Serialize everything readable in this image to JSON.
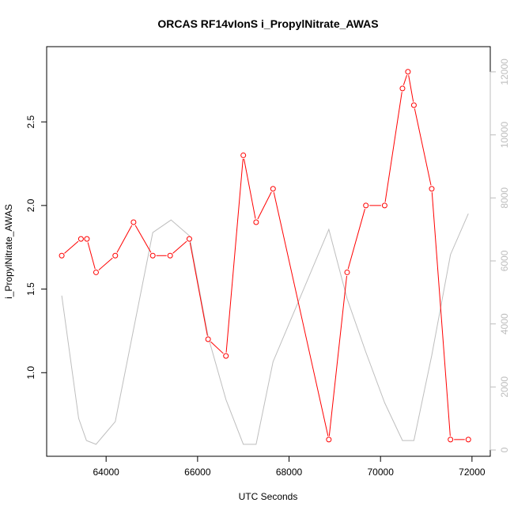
{
  "chart_data": {
    "type": "line",
    "title": "ORCAS RF14vIonS i_PropylNitrate_AWAS",
    "xlabel": "UTC Seconds",
    "ylabel": "i_PropylNitrate_AWAS",
    "xlim": [
      62700,
      72400
    ],
    "ylim": [
      0.5,
      2.95
    ],
    "y2lim": [
      -200,
      12800
    ],
    "x_ticks": [
      64000,
      66000,
      68000,
      70000,
      72000
    ],
    "y_ticks": [
      1.0,
      1.5,
      2.0,
      2.5
    ],
    "y2_ticks": [
      0,
      2000,
      4000,
      6000,
      8000,
      10000,
      12000
    ],
    "grid": false,
    "series": [
      {
        "axis": "left",
        "color": "#ff0000",
        "marker": "open-circle",
        "points": [
          [
            63030,
            1.7
          ],
          [
            63450,
            1.8
          ],
          [
            63580,
            1.8
          ],
          [
            63780,
            1.6
          ],
          [
            64200,
            1.7
          ],
          [
            64600,
            1.9
          ],
          [
            65020,
            1.7
          ],
          [
            65400,
            1.7
          ],
          [
            65820,
            1.8
          ],
          [
            66230,
            1.2
          ],
          [
            66620,
            1.1
          ],
          [
            67000,
            2.3
          ],
          [
            67280,
            1.9
          ],
          [
            67650,
            2.1
          ],
          [
            68870,
            0.6
          ],
          [
            69270,
            1.6
          ],
          [
            69680,
            2.0
          ],
          [
            70090,
            2.0
          ],
          [
            70480,
            2.7
          ],
          [
            70600,
            2.8
          ],
          [
            70730,
            2.6
          ],
          [
            71120,
            2.1
          ],
          [
            71530,
            0.6
          ],
          [
            71920,
            0.6
          ]
        ]
      },
      {
        "axis": "right",
        "color": "#bebebe",
        "marker": "none",
        "points": [
          [
            63030,
            4900
          ],
          [
            63400,
            1000
          ],
          [
            63570,
            300
          ],
          [
            63780,
            180
          ],
          [
            64200,
            900
          ],
          [
            65020,
            6900
          ],
          [
            65420,
            7300
          ],
          [
            65820,
            6800
          ],
          [
            66230,
            3600
          ],
          [
            66620,
            1600
          ],
          [
            67000,
            180
          ],
          [
            67280,
            180
          ],
          [
            67650,
            2800
          ],
          [
            68870,
            7000
          ],
          [
            69270,
            4800
          ],
          [
            69680,
            3100
          ],
          [
            70090,
            1500
          ],
          [
            70480,
            300
          ],
          [
            70730,
            300
          ],
          [
            71120,
            3000
          ],
          [
            71530,
            6200
          ],
          [
            71920,
            7500
          ]
        ]
      }
    ]
  }
}
